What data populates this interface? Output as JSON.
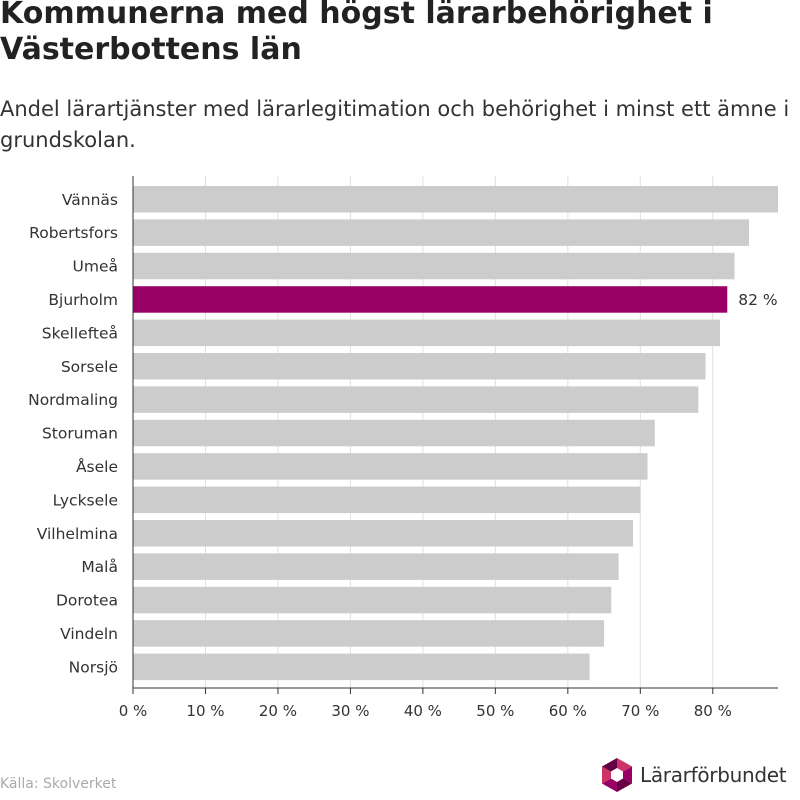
{
  "header": {
    "title": "Kommunerna med högst lärarbehörighet i Västerbottens län",
    "subtitle": "Andel lärartjänster med lärarlegitimation och behörighet i minst ett ämne i grundskolan."
  },
  "chart_data": {
    "type": "bar",
    "orientation": "horizontal",
    "categories": [
      "Vännäs",
      "Robertsfors",
      "Umeå",
      "Bjurholm",
      "Skellefteå",
      "Sorsele",
      "Nordmaling",
      "Storuman",
      "Åsele",
      "Lycksele",
      "Vilhelmina",
      "Malå",
      "Dorotea",
      "Vindeln",
      "Norsjö"
    ],
    "values": [
      89,
      85,
      83,
      82,
      81,
      79,
      78,
      72,
      71,
      70,
      69,
      67,
      66,
      65,
      63
    ],
    "highlight": {
      "category": "Bjurholm",
      "label": "82 %",
      "color": "#990066"
    },
    "bar_color": "#cccccc",
    "xlim": [
      0,
      89
    ],
    "x_ticks": [
      0,
      10,
      20,
      30,
      40,
      50,
      60,
      70,
      80
    ],
    "tick_suffix": " %",
    "grid": true
  },
  "footer": {
    "source": "Källa: Skolverket",
    "logo_text": "Lärarförbundet",
    "logo_icon": "lararforbundet-logo-icon",
    "logo_colors": [
      "#990066",
      "#cc3366",
      "#660044"
    ]
  }
}
